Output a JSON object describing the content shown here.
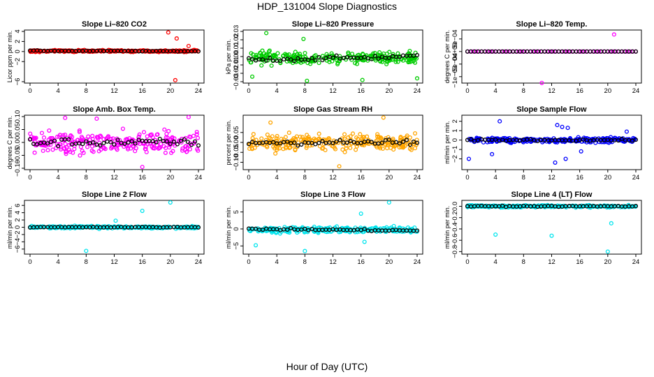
{
  "figure": {
    "title": "HDP_131004  Slope Diagnostics",
    "xlabel": "Hour of Day (UTC)"
  },
  "chart_data": [
    {
      "type": "scatter",
      "title": "Slope Li–820 CO2",
      "ylabel": "Licor ppm per min.",
      "xlim": [
        0,
        24
      ],
      "ylim": [
        -6,
        4
      ],
      "xticks": [
        "0",
        "4",
        "8",
        "12",
        "16",
        "20",
        "24"
      ],
      "yticks": [
        -6,
        -2,
        0,
        2,
        4
      ],
      "ytick_labels": [
        "−6",
        "−2",
        "0",
        "2",
        "4"
      ],
      "series_color": "#ff0000",
      "mean_color": "#000000",
      "noise": 0.18,
      "outliers": [
        [
          19.7,
          3.8
        ],
        [
          20.9,
          2.6
        ],
        [
          20.7,
          -5.7
        ],
        [
          22.6,
          1.1
        ]
      ],
      "hourly_mean_trend": [
        0.15,
        0.05
      ]
    },
    {
      "type": "scatter",
      "title": "Slope Li–820 Pressure",
      "ylabel": "kPa per min.",
      "xlim": [
        0,
        24
      ],
      "ylim": [
        -0.03,
        0.03
      ],
      "xticks": [
        "0",
        "4",
        "8",
        "12",
        "16",
        "20",
        "24"
      ],
      "yticks": [
        -0.03,
        -0.02,
        -0.01,
        0.0,
        0.01,
        0.02,
        0.03
      ],
      "ytick_labels": [
        "−0.03",
        "−0.02",
        "−0.01",
        "0.00",
        "0.01",
        "0.02",
        "0.03"
      ],
      "series_color": "#00cc00",
      "mean_color": "#000000",
      "noise": 0.007,
      "outliers": [
        [
          2.5,
          0.028
        ],
        [
          7.8,
          0.021
        ],
        [
          8.3,
          -0.029
        ],
        [
          16.2,
          -0.028
        ],
        [
          24.0,
          -0.026
        ],
        [
          0.5,
          -0.024
        ]
      ],
      "hourly_mean_trend": [
        -0.004,
        0.0
      ]
    },
    {
      "type": "scatter",
      "title": "Slope Li–820 Temp.",
      "ylabel": "degrees C per min.",
      "xlim": [
        0,
        24
      ],
      "ylim": [
        -0.0012,
        0.0008
      ],
      "xticks": [
        "0",
        "4",
        "8",
        "12",
        "16",
        "20",
        "24"
      ],
      "yticks": [
        -0.001,
        -0.0005,
        0.0,
        0.0005
      ],
      "ytick_labels": [
        "−1e−03",
        "−5e−04",
        "0e+00",
        "5e−04"
      ],
      "series_color": "#ff00ff",
      "mean_color": "#000000",
      "noise": 0.0,
      "outliers": [
        [
          20.9,
          0.00068
        ],
        [
          10.6,
          -0.00125
        ]
      ],
      "hourly_mean_trend": [
        0.0,
        0.0
      ]
    },
    {
      "type": "scatter",
      "title": "Slope Amb. Box Temp.",
      "ylabel": "degrees C per min.",
      "xlim": [
        0,
        24
      ],
      "ylim": [
        -0.1,
        0.1
      ],
      "xticks": [
        "0",
        "4",
        "8",
        "12",
        "16",
        "20",
        "24"
      ],
      "yticks": [
        -0.1,
        -0.05,
        0.0,
        0.05,
        0.1
      ],
      "ytick_labels": [
        "−0.10",
        "−0.05",
        "0.00",
        "0.05",
        "0.10"
      ],
      "series_color": "#ff00ff",
      "mean_color": "#000000",
      "noise": 0.04,
      "outliers": [
        [
          16.0,
          -0.095
        ],
        [
          22.6,
          0.098
        ],
        [
          5.0,
          0.095
        ],
        [
          9.5,
          0.092
        ]
      ],
      "hourly_mean_trend": [
        0.0,
        0.0
      ]
    },
    {
      "type": "scatter",
      "title": "Slope Gas Stream RH",
      "ylabel": "percent per min.",
      "xlim": [
        0,
        24
      ],
      "ylim": [
        -0.13,
        0.13
      ],
      "xticks": [
        "0",
        "4",
        "8",
        "12",
        "16",
        "20",
        "24"
      ],
      "yticks": [
        -0.1,
        -0.05,
        0.0,
        0.05
      ],
      "ytick_labels": [
        "−0.10",
        "−0.05",
        "0.00",
        "0.05"
      ],
      "series_color": "#ffa500",
      "mean_color": "#000000",
      "noise": 0.04,
      "outliers": [
        [
          19.2,
          0.125
        ],
        [
          12.9,
          -0.12
        ],
        [
          3.1,
          0.1
        ]
      ],
      "hourly_mean_trend": [
        0.0,
        0.0
      ]
    },
    {
      "type": "scatter",
      "title": "Slope Sample Flow",
      "ylabel": "ml/min per min.",
      "xlim": [
        0,
        24
      ],
      "ylim": [
        -3,
        2.5
      ],
      "xticks": [
        "0",
        "4",
        "8",
        "12",
        "16",
        "20",
        "24"
      ],
      "yticks": [
        -2,
        -1,
        0,
        1,
        2
      ],
      "ytick_labels": [
        "−2",
        "−1",
        "0",
        "1",
        "2"
      ],
      "series_color": "#0000ff",
      "mean_color": "#000000",
      "noise": 0.25,
      "outliers": [
        [
          13.5,
          1.4
        ],
        [
          12.8,
          1.6
        ],
        [
          14.3,
          1.3
        ],
        [
          12.5,
          -2.4
        ],
        [
          14.0,
          -2.0
        ],
        [
          16.2,
          -1.2
        ],
        [
          4.6,
          2.0
        ],
        [
          0.2,
          -2.0
        ],
        [
          3.5,
          -1.5
        ],
        [
          22.7,
          0.9
        ]
      ],
      "hourly_mean_trend": [
        0.0,
        0.0
      ]
    },
    {
      "type": "scatter",
      "title": "Slope Line 2 Flow",
      "ylabel": "ml/min per min.",
      "xlim": [
        0,
        24
      ],
      "ylim": [
        -7,
        7
      ],
      "xticks": [
        "0",
        "4",
        "8",
        "12",
        "16",
        "20",
        "24"
      ],
      "yticks": [
        -6,
        -4,
        -2,
        0,
        2,
        4,
        6
      ],
      "ytick_labels": [
        "−6",
        "−4",
        "−2",
        "0",
        "2",
        "4",
        "6"
      ],
      "series_color": "#00e5ee",
      "mean_color": "#000000",
      "noise": 0.3,
      "outliers": [
        [
          8.0,
          -6.5
        ],
        [
          16.0,
          4.5
        ],
        [
          20.0,
          6.8
        ],
        [
          12.2,
          1.8
        ]
      ],
      "hourly_mean_trend": [
        0.0,
        0.0
      ]
    },
    {
      "type": "scatter",
      "title": "Slope Line 3 Flow",
      "ylabel": "ml/min per min.",
      "xlim": [
        0,
        24
      ],
      "ylim": [
        -7,
        8
      ],
      "xticks": [
        "0",
        "4",
        "8",
        "12",
        "16",
        "20",
        "24"
      ],
      "yticks": [
        -5,
        0,
        5
      ],
      "ytick_labels": [
        "−5",
        "0",
        "5"
      ],
      "series_color": "#00e5ee",
      "mean_color": "#000000",
      "noise": 0.8,
      "outliers": [
        [
          8.0,
          -6.5
        ],
        [
          20.0,
          7.8
        ],
        [
          16.0,
          4.5
        ],
        [
          1.0,
          -4.8
        ],
        [
          16.5,
          -3.8
        ]
      ],
      "hourly_mean_trend": [
        0.0,
        -0.5
      ]
    },
    {
      "type": "scatter",
      "title": "Slope Line 4 (LT) Flow",
      "ylabel": "ml/min per min.",
      "xlim": [
        0,
        24
      ],
      "ylim": [
        -0.82,
        0.08
      ],
      "xticks": [
        "0",
        "4",
        "8",
        "12",
        "16",
        "20",
        "24"
      ],
      "yticks": [
        -0.8,
        -0.6,
        -0.4,
        -0.2,
        0.0
      ],
      "ytick_labels": [
        "−0.8",
        "−0.6",
        "−0.4",
        "−0.2",
        "0.0"
      ],
      "series_color": "#00e5ee",
      "mean_color": "#000000",
      "noise": 0.02,
      "outliers": [
        [
          4.0,
          -0.5
        ],
        [
          12.0,
          -0.52
        ],
        [
          20.0,
          -0.8
        ],
        [
          20.5,
          -0.3
        ]
      ],
      "hourly_mean_trend": [
        0.0,
        0.0
      ]
    }
  ]
}
